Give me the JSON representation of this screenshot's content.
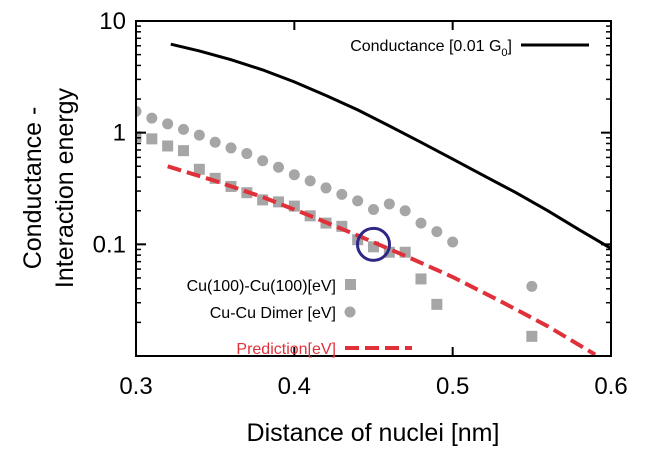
{
  "chart_data": {
    "type": "line",
    "xlabel": "Distance of nuclei [nm]",
    "ylabel_lines": [
      "Conductance -",
      "Interaction energy"
    ],
    "xlim": [
      0.3,
      0.6
    ],
    "ylim": [
      0.01,
      10
    ],
    "yscale": "log",
    "x_ticks": [
      {
        "value": 0.3,
        "label": "0.3"
      },
      {
        "value": 0.4,
        "label": "0.4"
      },
      {
        "value": 0.5,
        "label": "0.5"
      },
      {
        "value": 0.6,
        "label": "0.6"
      }
    ],
    "y_ticks": [
      {
        "value": 0.1,
        "label": "0.1"
      },
      {
        "value": 1,
        "label": "1"
      },
      {
        "value": 10,
        "label": "10"
      }
    ],
    "grid": false,
    "legend_placement": "top-right and bottom-left",
    "series": [
      {
        "name": "Conductance [0.01 G",
        "name_subscript": "0",
        "name_suffix": "]",
        "kind": "line",
        "color": "#000000",
        "x": [
          0.322,
          0.34,
          0.36,
          0.38,
          0.4,
          0.42,
          0.44,
          0.46,
          0.48,
          0.5,
          0.52,
          0.54,
          0.56,
          0.58,
          0.6
        ],
        "y": [
          6.2,
          5.4,
          4.5,
          3.65,
          2.85,
          2.15,
          1.6,
          1.15,
          0.82,
          0.58,
          0.41,
          0.29,
          0.2,
          0.135,
          0.092
        ]
      },
      {
        "name": "Cu(100)-Cu(100)[eV]",
        "kind": "square",
        "color": "#a6a6a6",
        "x": [
          0.3,
          0.31,
          0.32,
          0.33,
          0.34,
          0.35,
          0.36,
          0.37,
          0.38,
          0.39,
          0.4,
          0.41,
          0.42,
          0.43,
          0.44,
          0.45,
          0.46,
          0.47,
          0.48,
          0.49,
          0.55
        ],
        "y": [
          0.92,
          0.88,
          0.76,
          0.69,
          0.47,
          0.39,
          0.33,
          0.29,
          0.25,
          0.24,
          0.22,
          0.18,
          0.155,
          0.145,
          0.11,
          0.095,
          0.085,
          0.085,
          0.049,
          0.029,
          0.015
        ]
      },
      {
        "name": "Cu-Cu Dimer [eV]",
        "kind": "circle",
        "color": "#a6a6a6",
        "x": [
          0.3,
          0.31,
          0.32,
          0.33,
          0.34,
          0.35,
          0.36,
          0.37,
          0.38,
          0.39,
          0.4,
          0.41,
          0.42,
          0.43,
          0.44,
          0.45,
          0.46,
          0.47,
          0.48,
          0.49,
          0.5,
          0.55
        ],
        "y": [
          1.55,
          1.35,
          1.2,
          1.07,
          0.95,
          0.82,
          0.73,
          0.65,
          0.56,
          0.49,
          0.42,
          0.37,
          0.32,
          0.28,
          0.245,
          0.205,
          0.23,
          0.2,
          0.155,
          0.13,
          0.105,
          0.042
        ]
      },
      {
        "name": "Prediction[eV]",
        "kind": "dashed-line",
        "color": "#e0303a",
        "x": [
          0.32,
          0.35,
          0.38,
          0.41,
          0.44,
          0.47,
          0.5,
          0.53,
          0.56,
          0.59
        ],
        "y": [
          0.5,
          0.37,
          0.265,
          0.18,
          0.12,
          0.079,
          0.051,
          0.031,
          0.0185,
          0.0103
        ]
      }
    ],
    "annotations": [
      {
        "type": "circle",
        "x": 0.45,
        "y": 0.1,
        "color": "#2e2785"
      }
    ]
  }
}
